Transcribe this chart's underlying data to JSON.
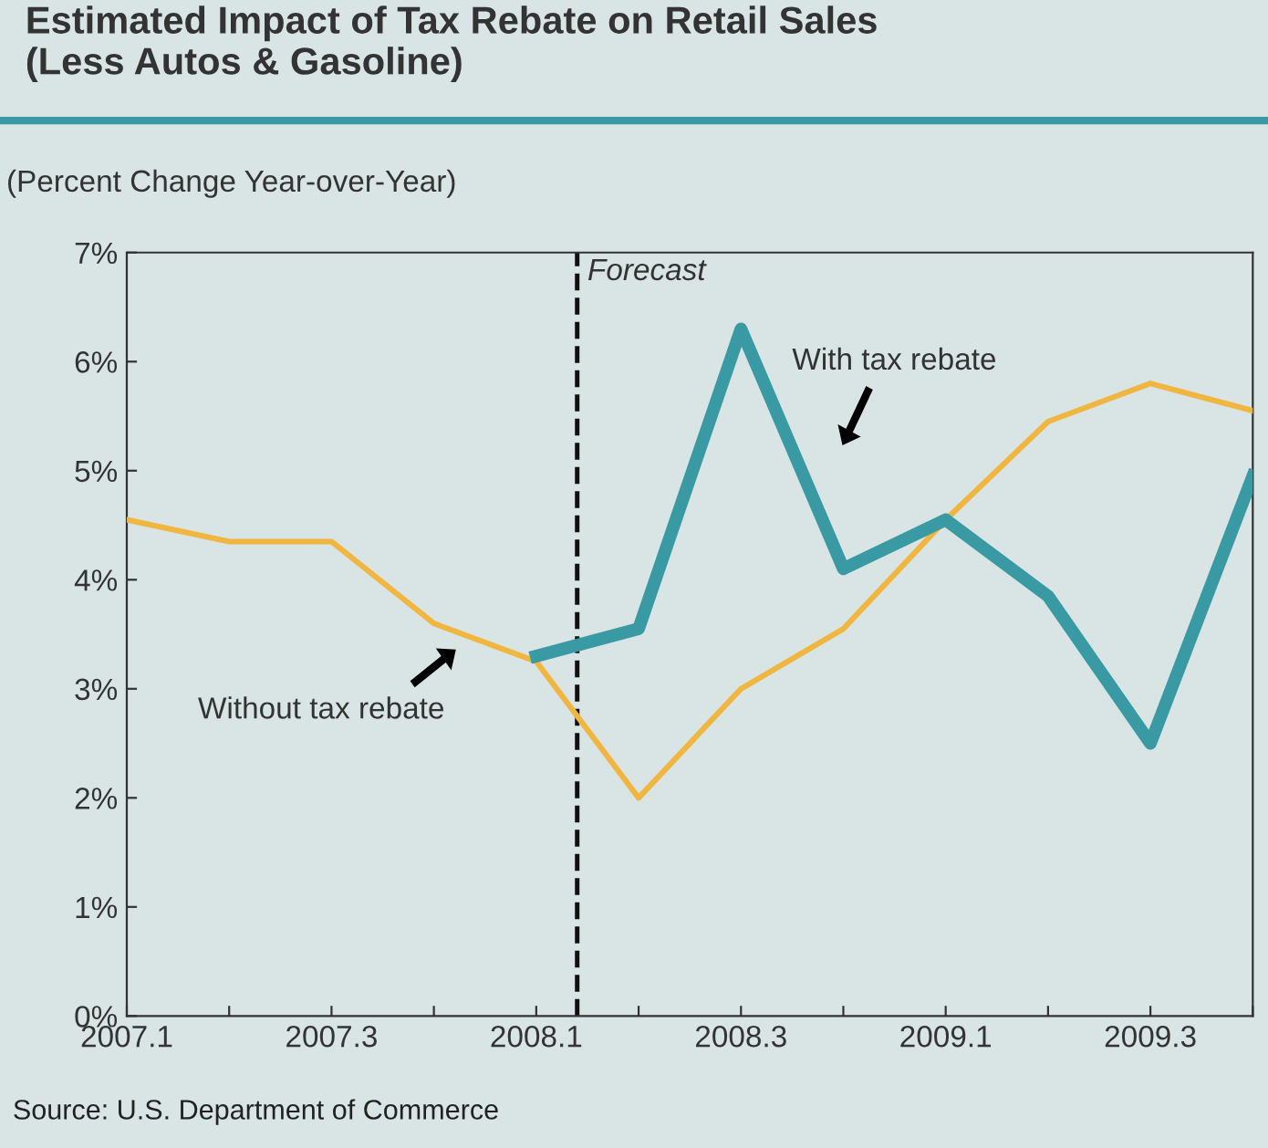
{
  "chart_data": {
    "type": "line",
    "title": "Estimated Impact of Tax Rebate on Retail Sales\n(Less Autos & Gasoline)",
    "ylabel": "(Percent Change Year-over-Year)",
    "categories": [
      "2007.1",
      null,
      "2007.3",
      null,
      "2008.1",
      null,
      "2008.3",
      null,
      "2009.1",
      null,
      "2009.3",
      null
    ],
    "series": [
      {
        "name": "Without tax rebate",
        "color": "#f0b640",
        "values": [
          4.55,
          4.35,
          4.35,
          3.6,
          3.25,
          2.0,
          3.0,
          3.55,
          4.55,
          5.45,
          5.8,
          5.55
        ]
      },
      {
        "name": "With tax rebate",
        "color": "#3a9aa4",
        "values": [
          null,
          null,
          null,
          null,
          3.3,
          3.55,
          6.3,
          4.1,
          4.55,
          3.85,
          2.5,
          4.95
        ]
      }
    ],
    "ylim": [
      0,
      7
    ],
    "yticks": [
      {
        "value": 0,
        "label": "0%"
      },
      {
        "value": 1,
        "label": "1%"
      },
      {
        "value": 2,
        "label": "2%"
      },
      {
        "value": 3,
        "label": "3%"
      },
      {
        "value": 4,
        "label": "4%"
      },
      {
        "value": 5,
        "label": "5%"
      },
      {
        "value": 6,
        "label": "6%"
      },
      {
        "value": 7,
        "label": "7%"
      }
    ],
    "annotations": [
      "Forecast",
      "Source: U.S. Department of Commerce"
    ],
    "grid": false,
    "legend": false,
    "marker": "none",
    "line_style": "solid"
  }
}
